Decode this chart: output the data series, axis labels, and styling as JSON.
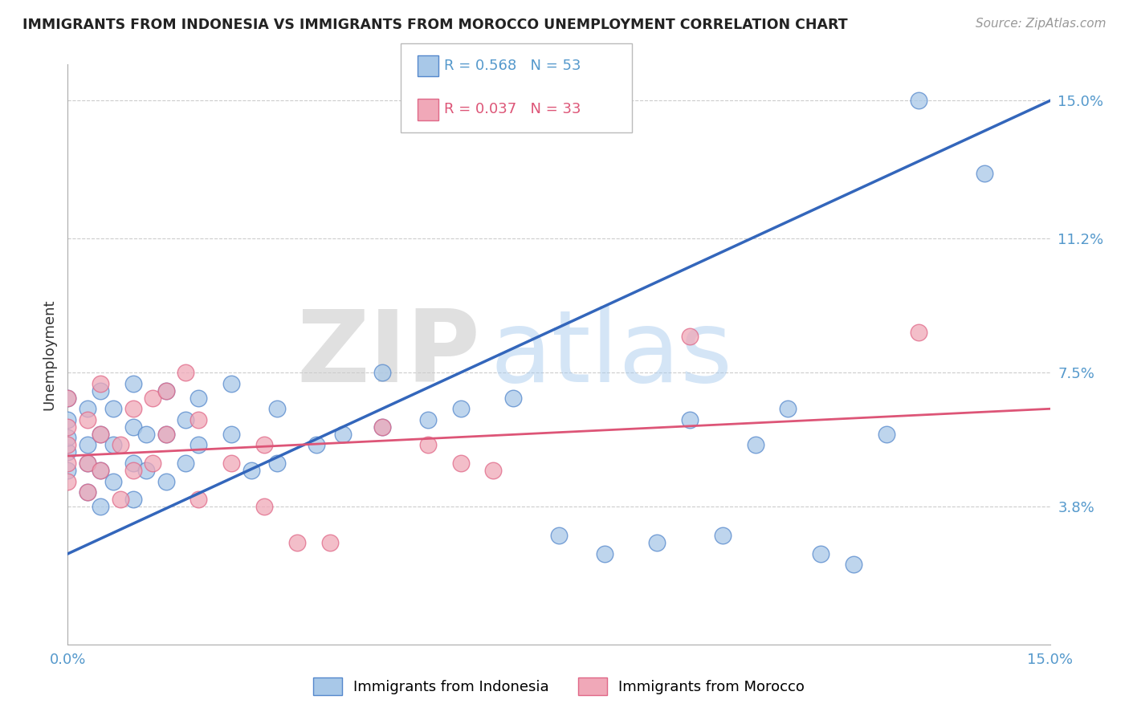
{
  "title": "IMMIGRANTS FROM INDONESIA VS IMMIGRANTS FROM MOROCCO UNEMPLOYMENT CORRELATION CHART",
  "source": "Source: ZipAtlas.com",
  "ylabel": "Unemployment",
  "xlim": [
    0,
    0.15
  ],
  "ylim": [
    0.0,
    0.16
  ],
  "ytick_values": [
    0.038,
    0.075,
    0.112,
    0.15
  ],
  "ytick_labels": [
    "3.8%",
    "7.5%",
    "11.2%",
    "15.0%"
  ],
  "indonesia_color": "#a8c8e8",
  "morocco_color": "#f0a8b8",
  "indonesia_edge": "#5588cc",
  "morocco_edge": "#e06888",
  "line_indonesia_color": "#3366bb",
  "line_morocco_color": "#dd5577",
  "r_indonesia": 0.568,
  "n_indonesia": 53,
  "r_morocco": 0.037,
  "n_morocco": 33,
  "watermark_zip": "ZIP",
  "watermark_atlas": "atlas",
  "background_color": "#ffffff",
  "indonesia_points_x": [
    0.0,
    0.0,
    0.0,
    0.0,
    0.0,
    0.003,
    0.003,
    0.003,
    0.003,
    0.005,
    0.005,
    0.005,
    0.005,
    0.007,
    0.007,
    0.007,
    0.01,
    0.01,
    0.01,
    0.01,
    0.012,
    0.012,
    0.015,
    0.015,
    0.015,
    0.018,
    0.018,
    0.02,
    0.02,
    0.025,
    0.025,
    0.028,
    0.032,
    0.032,
    0.038,
    0.042,
    0.048,
    0.048,
    0.055,
    0.06,
    0.068,
    0.075,
    0.082,
    0.09,
    0.095,
    0.1,
    0.105,
    0.11,
    0.115,
    0.12,
    0.125,
    0.13,
    0.14
  ],
  "indonesia_points_y": [
    0.048,
    0.053,
    0.057,
    0.062,
    0.068,
    0.042,
    0.05,
    0.055,
    0.065,
    0.038,
    0.048,
    0.058,
    0.07,
    0.045,
    0.055,
    0.065,
    0.04,
    0.05,
    0.06,
    0.072,
    0.048,
    0.058,
    0.045,
    0.058,
    0.07,
    0.05,
    0.062,
    0.055,
    0.068,
    0.058,
    0.072,
    0.048,
    0.05,
    0.065,
    0.055,
    0.058,
    0.06,
    0.075,
    0.062,
    0.065,
    0.068,
    0.03,
    0.025,
    0.028,
    0.062,
    0.03,
    0.055,
    0.065,
    0.025,
    0.022,
    0.058,
    0.15,
    0.13
  ],
  "morocco_points_x": [
    0.0,
    0.0,
    0.0,
    0.0,
    0.0,
    0.003,
    0.003,
    0.003,
    0.005,
    0.005,
    0.005,
    0.008,
    0.008,
    0.01,
    0.01,
    0.013,
    0.013,
    0.015,
    0.015,
    0.018,
    0.02,
    0.02,
    0.025,
    0.03,
    0.03,
    0.035,
    0.04,
    0.048,
    0.055,
    0.06,
    0.065,
    0.095,
    0.13
  ],
  "morocco_points_y": [
    0.045,
    0.05,
    0.055,
    0.06,
    0.068,
    0.042,
    0.05,
    0.062,
    0.048,
    0.058,
    0.072,
    0.04,
    0.055,
    0.048,
    0.065,
    0.05,
    0.068,
    0.058,
    0.07,
    0.075,
    0.04,
    0.062,
    0.05,
    0.038,
    0.055,
    0.028,
    0.028,
    0.06,
    0.055,
    0.05,
    0.048,
    0.085,
    0.086
  ]
}
